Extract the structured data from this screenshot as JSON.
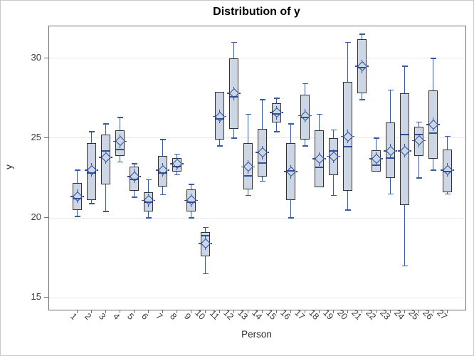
{
  "title": "Distribution of y",
  "x_axis": {
    "label": "Person"
  },
  "y_axis": {
    "label": "y"
  },
  "colors": {
    "box_fill": "#ccd6e4",
    "box_border": "#333333",
    "whisker_blue": "#3a5aa5",
    "median_blue": "#2d4f9e",
    "gridline": "#e9e9e9",
    "frame": "#6f6f6f",
    "tick_text": "#3c3c3c"
  },
  "chart_data": {
    "type": "boxplot",
    "title": "Distribution of y",
    "xlabel": "Person",
    "ylabel": "y",
    "ylim": [
      14.25,
      32.0
    ],
    "yticks": [
      15,
      20,
      25,
      30
    ],
    "grid": "horizontal",
    "categories": [
      "1",
      "2",
      "3",
      "4",
      "5",
      "6",
      "7",
      "8",
      "9",
      "10",
      "11",
      "12",
      "13",
      "14",
      "15",
      "16",
      "17",
      "18",
      "19",
      "20",
      "21",
      "22",
      "23",
      "24",
      "25",
      "26",
      "27"
    ],
    "series": [
      {
        "person": "1",
        "low": 20.1,
        "q1": 20.5,
        "med": 21.2,
        "mean": 21.35,
        "q3": 22.2,
        "high": 23.0
      },
      {
        "person": "2",
        "low": 20.9,
        "q1": 21.1,
        "med": 22.8,
        "mean": 23.0,
        "q3": 24.7,
        "high": 25.4
      },
      {
        "person": "3",
        "low": 20.4,
        "q1": 22.1,
        "med": 24.2,
        "mean": 23.8,
        "q3": 25.2,
        "high": 25.9
      },
      {
        "person": "4",
        "low": 23.5,
        "q1": 23.9,
        "med": 24.3,
        "mean": 24.8,
        "q3": 25.5,
        "high": 26.3
      },
      {
        "person": "5",
        "low": 21.3,
        "q1": 21.7,
        "med": 22.4,
        "mean": 22.6,
        "q3": 23.2,
        "high": 23.4
      },
      {
        "person": "6",
        "low": 20.0,
        "q1": 20.4,
        "med": 21.0,
        "mean": 21.1,
        "q3": 21.6,
        "high": 22.4
      },
      {
        "person": "7",
        "low": 21.45,
        "q1": 21.95,
        "med": 22.8,
        "mean": 23.0,
        "q3": 23.9,
        "high": 24.9
      },
      {
        "person": "8",
        "low": 22.7,
        "q1": 22.9,
        "med": 23.2,
        "mean": 23.4,
        "q3": 23.75,
        "high": 24.0
      },
      {
        "person": "9",
        "low": 20.0,
        "q1": 20.4,
        "med": 21.0,
        "mean": 21.1,
        "q3": 21.8,
        "high": 22.1
      },
      {
        "person": "10",
        "low": 16.5,
        "q1": 17.6,
        "med": 18.9,
        "mean": 18.4,
        "q3": 19.1,
        "high": 19.4
      },
      {
        "person": "11",
        "low": 24.5,
        "q1": 24.9,
        "med": 26.2,
        "mean": 26.35,
        "q3": 27.9,
        "high": 27.9
      },
      {
        "person": "12",
        "low": 25.0,
        "q1": 25.6,
        "med": 27.6,
        "mean": 27.8,
        "q3": 30.0,
        "high": 31.0
      },
      {
        "person": "13",
        "low": 21.4,
        "q1": 21.8,
        "med": 22.65,
        "mean": 23.2,
        "q3": 24.7,
        "high": 26.5
      },
      {
        "person": "14",
        "low": 22.3,
        "q1": 22.6,
        "med": 23.45,
        "mean": 24.1,
        "q3": 25.6,
        "high": 27.4
      },
      {
        "person": "15",
        "low": 25.4,
        "q1": 26.0,
        "med": 26.5,
        "mean": 26.6,
        "q3": 27.2,
        "high": 27.5
      },
      {
        "person": "16",
        "low": 20.0,
        "q1": 21.1,
        "med": 22.95,
        "mean": 22.9,
        "q3": 24.7,
        "high": 25.9
      },
      {
        "person": "17",
        "low": 24.5,
        "q1": 24.9,
        "med": 26.3,
        "mean": 26.4,
        "q3": 27.7,
        "high": 28.4
      },
      {
        "person": "18",
        "low": 21.9,
        "q1": 21.9,
        "med": 23.15,
        "mean": 23.7,
        "q3": 25.5,
        "high": 26.5
      },
      {
        "person": "19",
        "low": 21.4,
        "q1": 22.7,
        "med": 24.2,
        "mean": 23.85,
        "q3": 25.0,
        "high": 25.5
      },
      {
        "person": "20",
        "low": 20.5,
        "q1": 21.7,
        "med": 24.45,
        "mean": 25.1,
        "q3": 28.5,
        "high": 31.0
      },
      {
        "person": "21",
        "low": 27.4,
        "q1": 27.8,
        "med": 29.4,
        "mean": 29.5,
        "q3": 31.2,
        "high": 31.5
      },
      {
        "person": "22",
        "low": 22.9,
        "q1": 22.9,
        "med": 23.3,
        "mean": 23.7,
        "q3": 24.25,
        "high": 25.0
      },
      {
        "person": "23",
        "low": 21.5,
        "q1": 22.5,
        "med": 23.75,
        "mean": 24.2,
        "q3": 26.0,
        "high": 28.0
      },
      {
        "person": "24",
        "low": 17.0,
        "q1": 20.8,
        "med": 25.2,
        "mean": 24.2,
        "q3": 27.8,
        "high": 29.5
      },
      {
        "person": "25",
        "low": 22.5,
        "q1": 23.9,
        "med": 25.2,
        "mean": 24.85,
        "q3": 25.7,
        "high": 26.0
      },
      {
        "person": "26",
        "low": 23.0,
        "q1": 23.7,
        "med": 25.3,
        "mean": 25.85,
        "q3": 28.0,
        "high": 30.0
      },
      {
        "person": "27",
        "low": 21.5,
        "q1": 21.6,
        "med": 22.9,
        "mean": 23.0,
        "q3": 24.3,
        "high": 25.1
      }
    ]
  }
}
